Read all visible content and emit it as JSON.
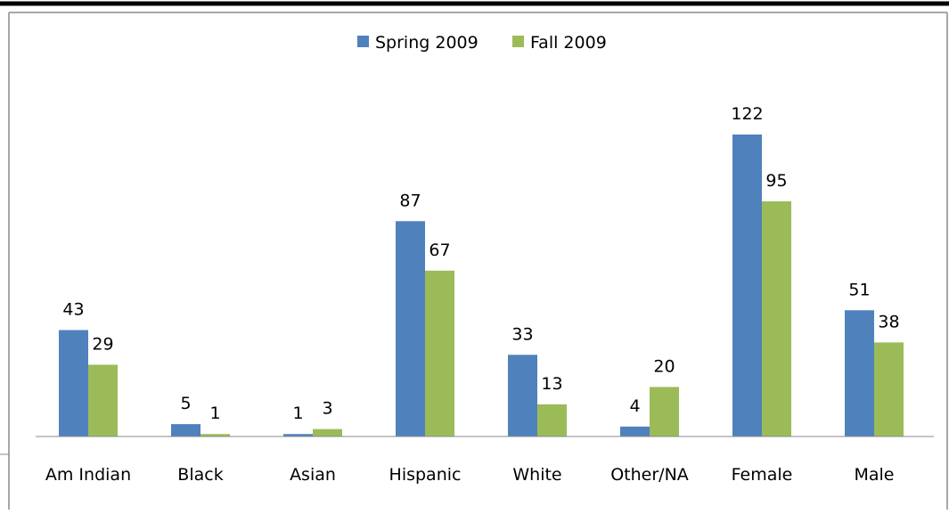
{
  "chart_data": {
    "type": "bar",
    "categories": [
      "Am Indian",
      "Black",
      "Asian",
      "Hispanic",
      "White",
      "Other/NA",
      "Female",
      "Male"
    ],
    "series": [
      {
        "name": "Spring 2009",
        "color": "#4f81bd",
        "values": [
          43,
          5,
          1,
          87,
          33,
          4,
          122,
          51
        ]
      },
      {
        "name": "Fall 2009",
        "color": "#9bbb59",
        "values": [
          29,
          1,
          3,
          67,
          13,
          20,
          95,
          38
        ]
      }
    ],
    "ylim": [
      0,
      122
    ],
    "grid": false,
    "legend_position": "top",
    "data_labels": true
  }
}
